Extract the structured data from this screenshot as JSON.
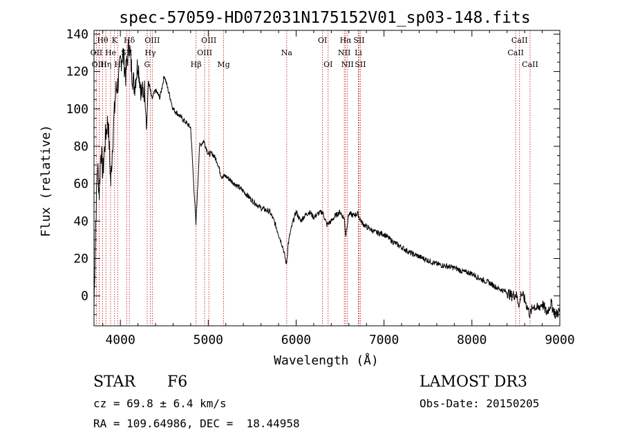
{
  "chart_data": {
    "type": "line",
    "title": "spec-57059-HD072031N175152V01_sp03-148.fits",
    "xlabel": "Wavelength (Å)",
    "ylabel": "Flux (relative)",
    "xlim": [
      3700,
      9000
    ],
    "ylim": [
      -16,
      142
    ],
    "xticks": [
      4000,
      5000,
      6000,
      7000,
      8000,
      9000
    ],
    "yticks": [
      0,
      20,
      40,
      60,
      80,
      100,
      120,
      140
    ],
    "series": [
      {
        "name": "spectrum",
        "x": [
          3700,
          3720,
          3740,
          3760,
          3780,
          3800,
          3830,
          3860,
          3890,
          3920,
          3950,
          3980,
          4000,
          4030,
          4060,
          4100,
          4130,
          4160,
          4200,
          4240,
          4280,
          4300,
          4320,
          4360,
          4400,
          4450,
          4500,
          4600,
          4700,
          4800,
          4860,
          4900,
          4950,
          5000,
          5050,
          5100,
          5150,
          5200,
          5300,
          5400,
          5500,
          5600,
          5700,
          5750,
          5800,
          5850,
          5880,
          5890,
          5900,
          5910,
          5930,
          5960,
          6000,
          6050,
          6100,
          6150,
          6200,
          6250,
          6300,
          6350,
          6400,
          6450,
          6500,
          6550,
          6563,
          6580,
          6600,
          6650,
          6700,
          6750,
          6800,
          6900,
          7000,
          7100,
          7200,
          7300,
          7400,
          7500,
          7600,
          7700,
          7800,
          7900,
          8000,
          8100,
          8200,
          8300,
          8400,
          8450,
          8500,
          8542,
          8560,
          8600,
          8662,
          8700,
          8750,
          8800,
          8850,
          8900,
          8950,
          9000
        ],
        "values": [
          -5,
          40,
          70,
          55,
          80,
          65,
          85,
          95,
          60,
          90,
          110,
          115,
          125,
          130,
          118,
          135,
          120,
          112,
          125,
          108,
          110,
          92,
          115,
          105,
          110,
          106,
          118,
          100,
          95,
          90,
          38,
          80,
          83,
          76,
          76,
          72,
          64,
          64,
          60,
          56,
          51,
          47,
          45,
          40,
          33,
          26,
          19,
          17,
          22,
          28,
          33,
          39,
          45,
          40,
          43,
          45,
          42,
          44,
          45,
          38,
          40,
          43,
          45,
          41,
          32,
          38,
          44,
          43,
          44,
          39,
          37,
          34,
          33,
          29,
          26,
          23,
          21,
          19,
          17,
          16,
          15,
          13,
          12,
          9,
          7,
          4,
          2,
          0,
          1,
          -5,
          2,
          -2,
          -10,
          -5,
          -7,
          -4,
          -9,
          -4,
          -10,
          -8
        ]
      }
    ],
    "lines": [
      {
        "label": "Hθ",
        "wave": 3798,
        "row": 0
      },
      {
        "label": "OII",
        "wave": 3727,
        "row": 1
      },
      {
        "label": "OIII",
        "wave": 3760,
        "row": 2
      },
      {
        "label": "K",
        "wave": 3934,
        "row": 0
      },
      {
        "label": "He",
        "wave": 3889,
        "row": 1
      },
      {
        "label": "Hη",
        "wave": 3835,
        "row": 2
      },
      {
        "label": "H",
        "wave": 3969,
        "row": 2
      },
      {
        "label": "Hδ",
        "wave": 4102,
        "row": 0
      },
      {
        "label": "SII",
        "wave": 4072,
        "row": 1
      },
      {
        "label": "OIII",
        "wave": 4363,
        "row": 0
      },
      {
        "label": "Hγ",
        "wave": 4341,
        "row": 1
      },
      {
        "label": "G",
        "wave": 4305,
        "row": 2
      },
      {
        "label": "Hβ",
        "wave": 4861,
        "row": 2
      },
      {
        "label": "OIII",
        "wave": 5007,
        "row": 0
      },
      {
        "label": "OIII",
        "wave": 4959,
        "row": 1
      },
      {
        "label": "Mg",
        "wave": 5175,
        "row": 2
      },
      {
        "label": "Na",
        "wave": 5893,
        "row": 1
      },
      {
        "label": "OI",
        "wave": 6300,
        "row": 0
      },
      {
        "label": "OI",
        "wave": 6364,
        "row": 2
      },
      {
        "label": "Hα",
        "wave": 6563,
        "row": 0
      },
      {
        "label": "SII",
        "wave": 6716,
        "row": 0
      },
      {
        "label": "NII",
        "wave": 6548,
        "row": 1
      },
      {
        "label": "Li",
        "wave": 6708,
        "row": 1
      },
      {
        "label": "NII",
        "wave": 6584,
        "row": 2
      },
      {
        "label": "SII",
        "wave": 6731,
        "row": 2
      },
      {
        "label": "CaII",
        "wave": 8542,
        "row": 0
      },
      {
        "label": "CaII",
        "wave": 8498,
        "row": 1
      },
      {
        "label": "CaII",
        "wave": 8662,
        "row": 2
      }
    ]
  },
  "footer": {
    "class_label": "STAR",
    "subclass": "F6",
    "survey": "LAMOST DR3",
    "cz": "cz = 69.8 ± 6.4 km/s",
    "obs_date": "Obs-Date: 20150205",
    "coords": "RA = 109.64986, DEC =  18.44958"
  },
  "colors": {
    "axis": "#000000",
    "spectrum": "#000000",
    "line_marker": "#c00000"
  }
}
